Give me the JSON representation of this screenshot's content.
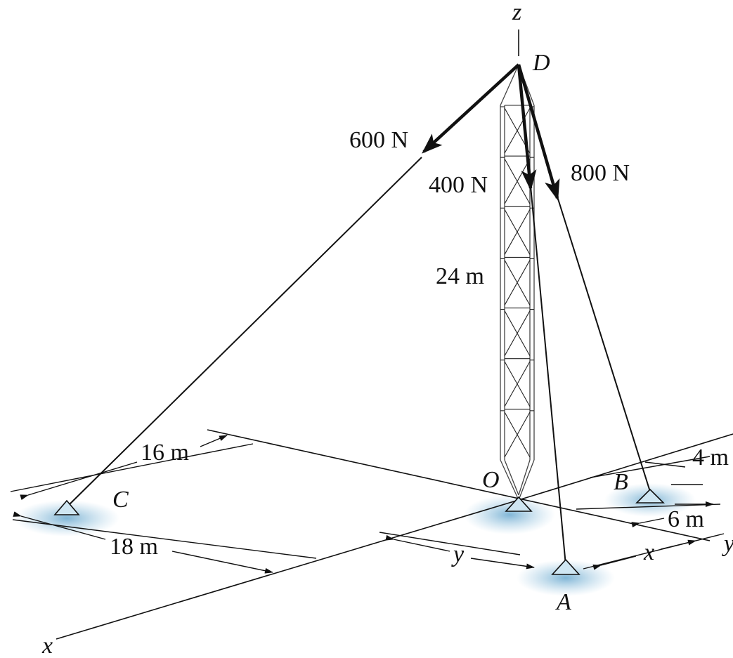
{
  "labels": {
    "z_axis": "z",
    "x_axis": "x",
    "y_axis": "y",
    "point_D": "D",
    "point_O": "O",
    "point_A": "A",
    "point_B": "B",
    "point_C": "C",
    "force_600": "600 N",
    "force_400": "400 N",
    "force_800": "800 N",
    "height_24m": "24 m",
    "dim_16m": "16 m",
    "dim_18m": "18 m",
    "dim_4m": "4 m",
    "dim_6m": "6 m",
    "dim_y": "y",
    "dim_x": "x"
  },
  "colors": {
    "ink": "#111111",
    "ground_shadow": "#7fb6d6",
    "support_fill": "#cfe6f2"
  }
}
